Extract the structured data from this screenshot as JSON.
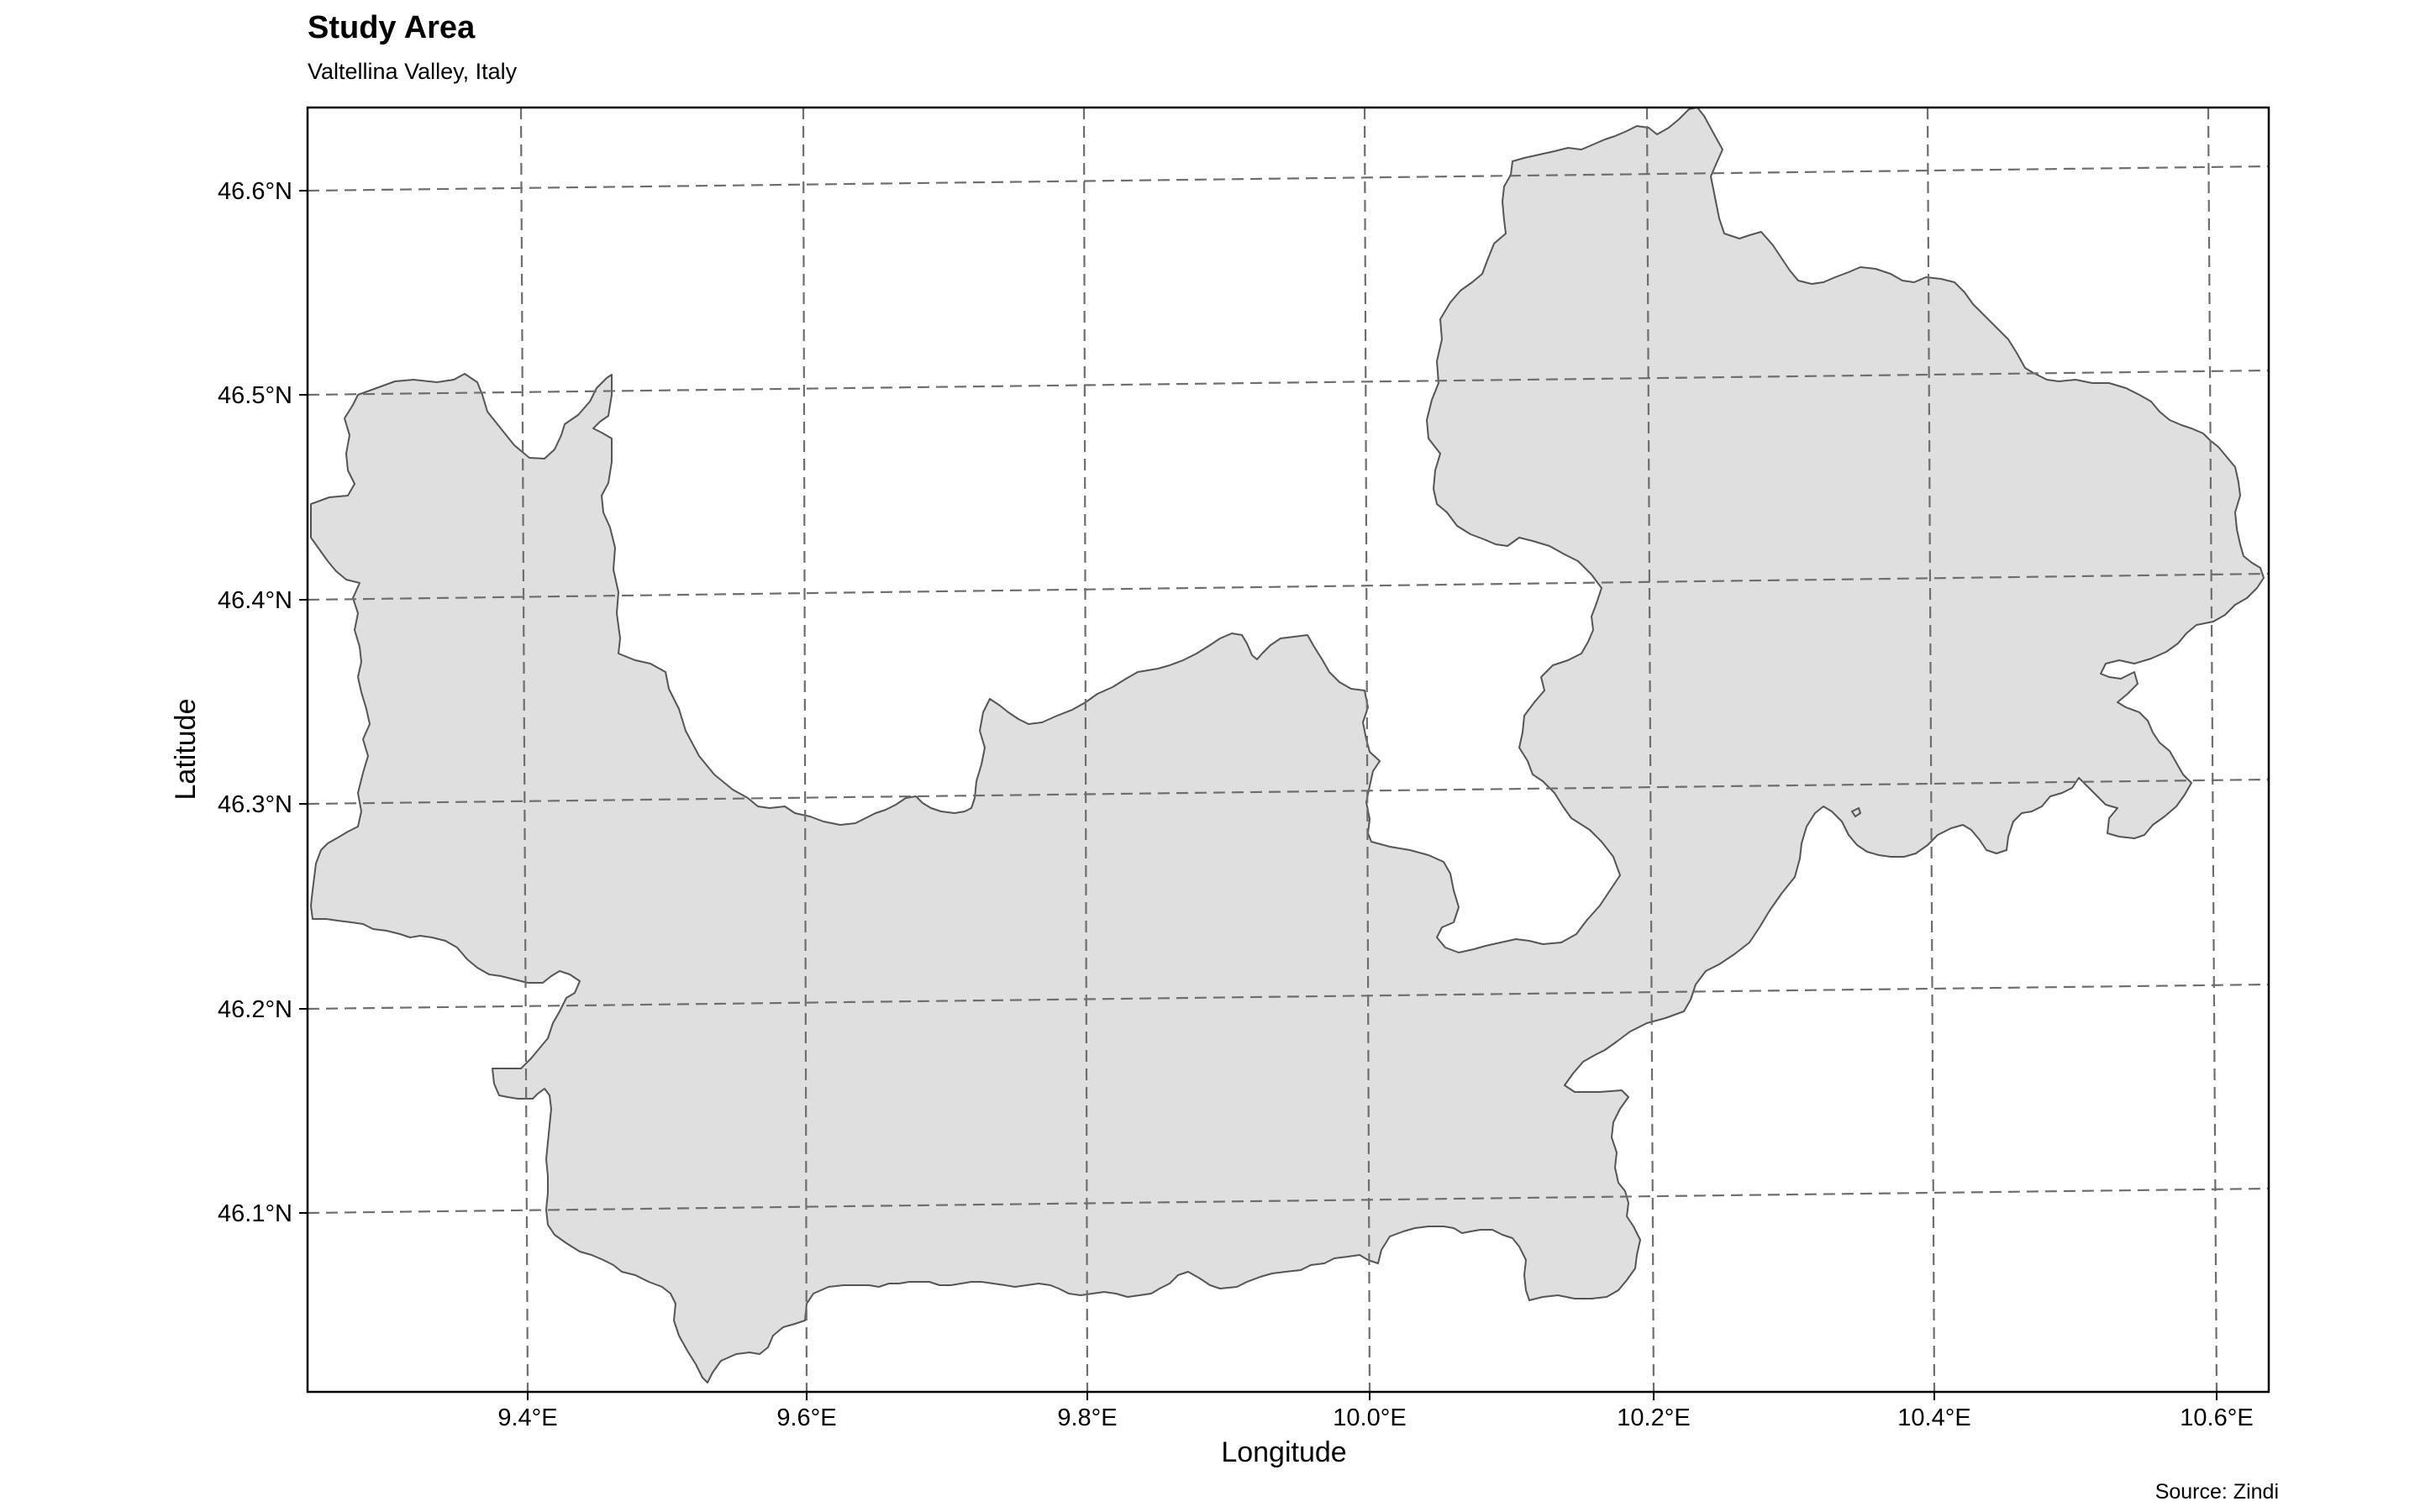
{
  "title": "Study Area",
  "subtitle": "Valtellina Valley, Italy",
  "caption": "Source: Zindi",
  "x_axis": {
    "title": "Longitude",
    "ticks": [
      "9.4°E",
      "9.6°E",
      "9.8°E",
      "10.0°E",
      "10.2°E",
      "10.4°E",
      "10.6°E"
    ]
  },
  "y_axis": {
    "title": "Latitude",
    "ticks": [
      "46.6°N",
      "46.5°N",
      "46.4°N",
      "46.3°N",
      "46.2°N",
      "46.1°N"
    ]
  },
  "map": {
    "region_fill": "#dfdfdf",
    "region_stroke": "#555555",
    "graticule_color": "#6e6e6e",
    "graticule_style": "dashed"
  }
}
